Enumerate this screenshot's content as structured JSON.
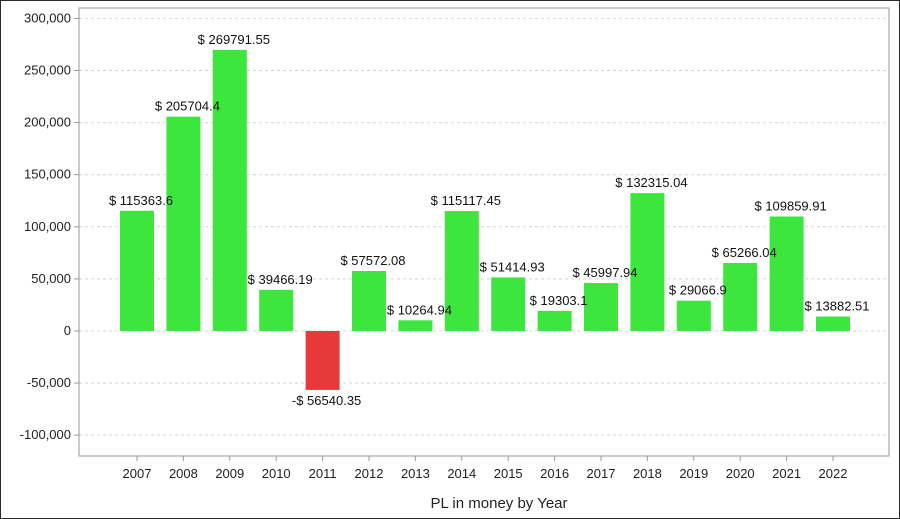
{
  "chart_data": {
    "type": "bar",
    "title": "",
    "xlabel": "PL in money by Year",
    "ylabel": "",
    "ylim": [
      -120000,
      310000
    ],
    "yticks": [
      -100000,
      -50000,
      0,
      50000,
      100000,
      150000,
      200000,
      250000,
      300000
    ],
    "ytick_labels": [
      "-100,000",
      "-50,000",
      "0",
      "50,000",
      "100,000",
      "150,000",
      "200,000",
      "250,000",
      "300,000"
    ],
    "grid": true,
    "categories": [
      "2007",
      "2008",
      "2009",
      "2010",
      "2011",
      "2012",
      "2013",
      "2014",
      "2015",
      "2016",
      "2017",
      "2018",
      "2019",
      "2020",
      "2021",
      "2022"
    ],
    "values": [
      115363.6,
      205704.4,
      269791.55,
      39466.19,
      -56540.35,
      57572.08,
      10264.94,
      115117.45,
      51414.93,
      19303.1,
      45997.94,
      132315.04,
      29066.9,
      65266.04,
      109859.91,
      13882.51
    ],
    "data_labels": [
      "$ 115363.6",
      "$ 205704.4",
      "$ 269791.55",
      "$ 39466.19",
      "-$ 56540.35",
      "$ 57572.08",
      "$ 10264.94",
      "$ 115117.45",
      "$ 51414.93",
      "$ 19303.1",
      "$ 45997.94",
      "$ 132315.04",
      "$ 29066.9",
      "$ 65266.04",
      "$ 109859.91",
      "$ 13882.51"
    ],
    "colors": {
      "positive": "#3de63d",
      "negative": "#e63a3a",
      "grid": "#d4d4d4",
      "axis": "#9a9a9a"
    }
  }
}
